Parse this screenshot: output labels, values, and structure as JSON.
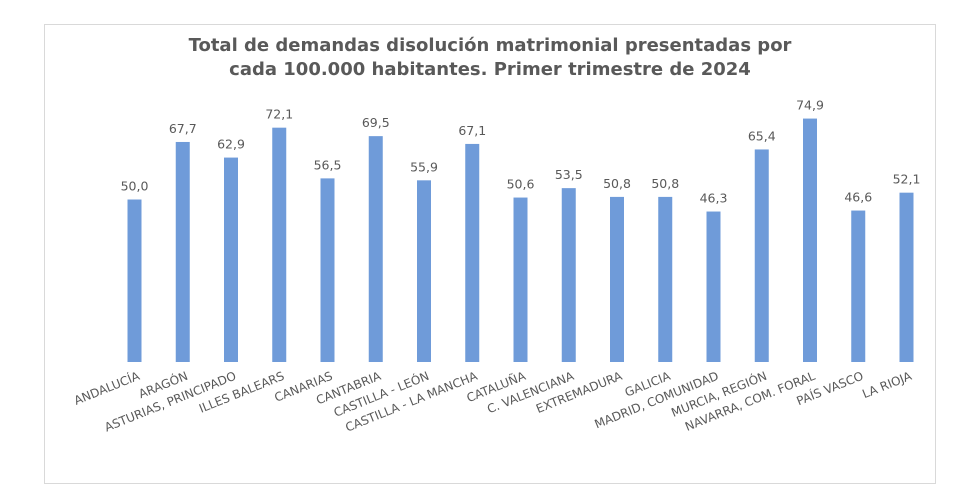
{
  "chart_data": {
    "type": "bar",
    "title_lines": [
      "Total de demandas disolución matrimonial presentadas por",
      "cada 100.000 habitantes. Primer trimestre de 2024"
    ],
    "xlabel": "",
    "ylabel": "",
    "ylim": [
      0,
      80
    ],
    "grid": false,
    "categories": [
      "ANDALUCÍA",
      "ARAGÓN",
      "ASTURIAS, PRINCIPADO",
      "ILLES BALEARS",
      "CANARIAS",
      "CANTABRIA",
      "CASTILLA - LEÓN",
      "CASTILLA - LA MANCHA",
      "CATALUÑA",
      "C. VALENCIANA",
      "EXTREMADURA",
      "GALICIA",
      "MADRID, COMUNIDAD",
      "MURCIA, REGIÓN",
      "NAVARRA, COM. FORAL",
      "PAÍS VASCO",
      "LA RIOJA"
    ],
    "values": [
      50.0,
      67.7,
      62.9,
      72.1,
      56.5,
      69.5,
      55.9,
      67.1,
      50.6,
      53.5,
      50.8,
      50.8,
      46.3,
      65.4,
      74.9,
      46.6,
      52.1
    ],
    "value_labels": [
      "50,0",
      "67,7",
      "62,9",
      "72,1",
      "56,5",
      "69,5",
      "55,9",
      "67,1",
      "50,6",
      "53,5",
      "50,8",
      "50,8",
      "46,3",
      "65,4",
      "74,9",
      "46,6",
      "52,1"
    ],
    "bar_color": "#6f9bd9"
  }
}
